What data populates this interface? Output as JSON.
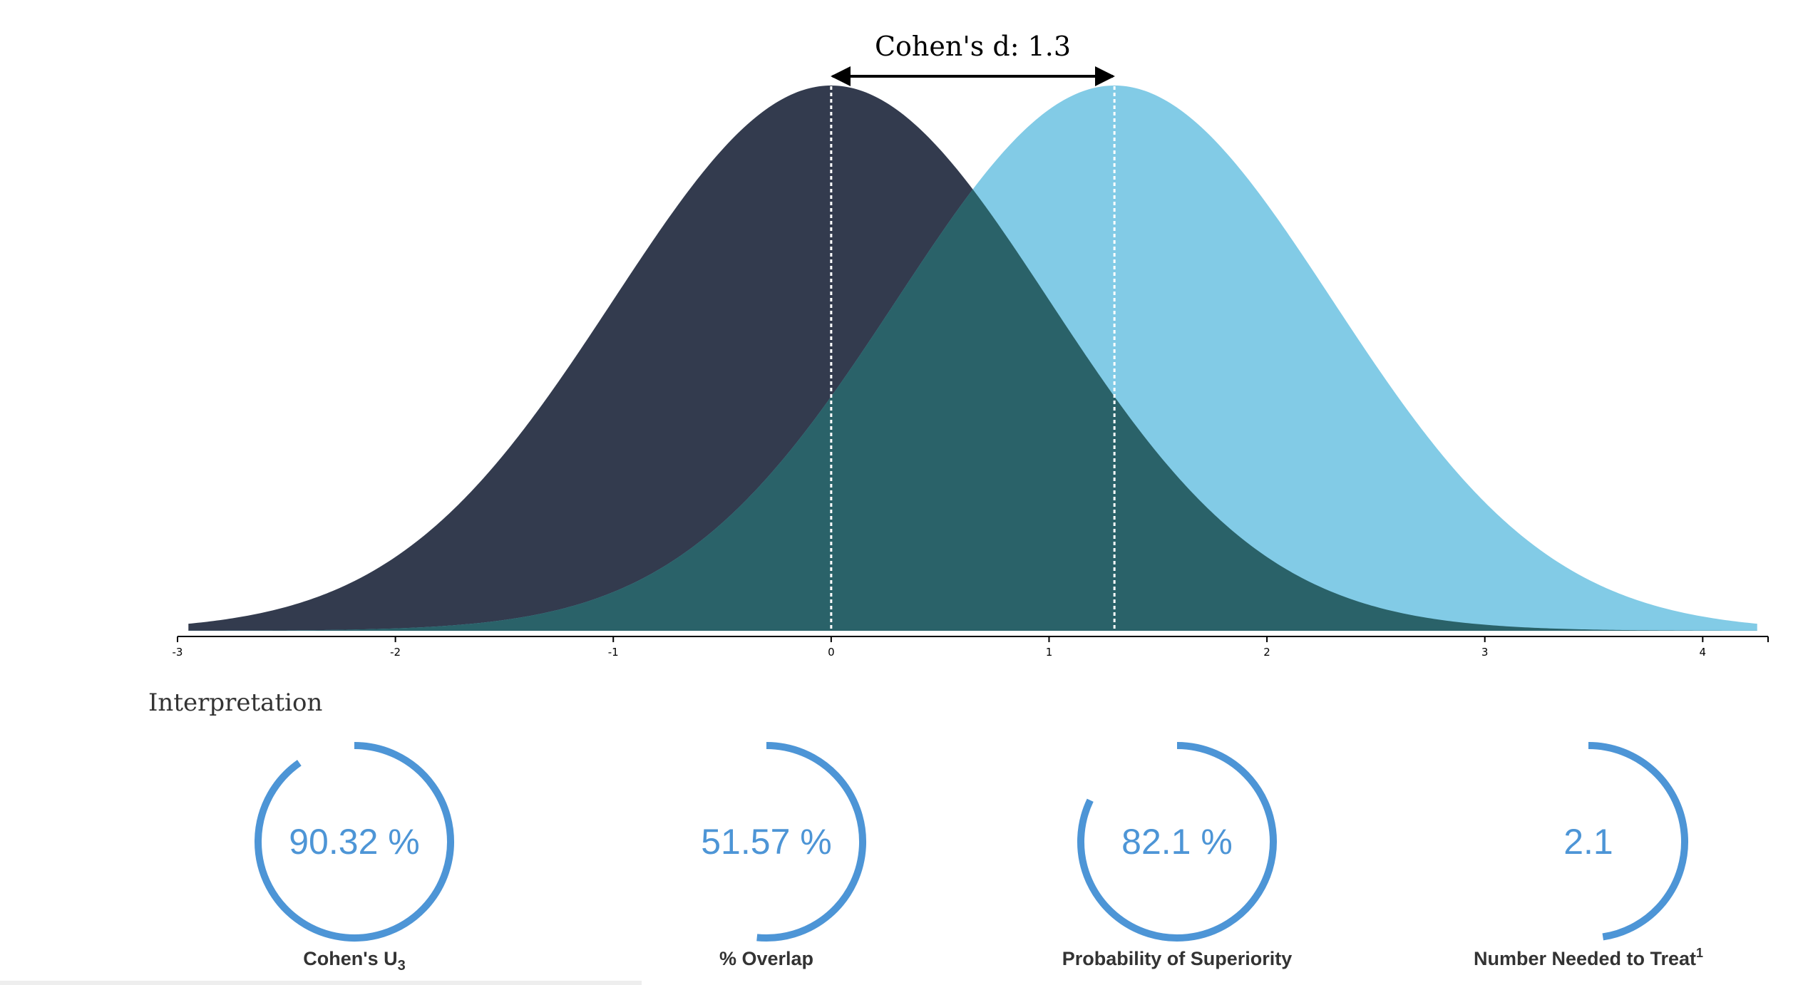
{
  "chart_data": {
    "type": "area",
    "title": "Cohen's d: 1.3",
    "cohens_d": 1.3,
    "xlim": [
      -3,
      4.3
    ],
    "x_ticks": [
      -3,
      -2,
      -1,
      0,
      1,
      2,
      3,
      4
    ],
    "series": [
      {
        "mean": 0,
        "sd": 1,
        "color": "#333b4e"
      },
      {
        "mean": 1.3,
        "sd": 1,
        "color": "#82cbe6"
      }
    ],
    "overlap_color": "#2a6269",
    "grid": false
  },
  "interpretation": {
    "title": "Interpretation",
    "accent_color": "#4d95d6",
    "gauges": [
      {
        "value": "90.32 %",
        "fraction": 0.9032,
        "label": "Cohen's U",
        "subscript": "3",
        "superscript": ""
      },
      {
        "value": "51.57 %",
        "fraction": 0.5157,
        "label": "% Overlap",
        "subscript": "",
        "superscript": ""
      },
      {
        "value": "82.1 %",
        "fraction": 0.821,
        "label": "Probability of Superiority",
        "subscript": "",
        "superscript": ""
      },
      {
        "value": "2.1",
        "fraction": 0.476,
        "label": "Number Needed to Treat",
        "subscript": "",
        "superscript": "1"
      }
    ]
  }
}
